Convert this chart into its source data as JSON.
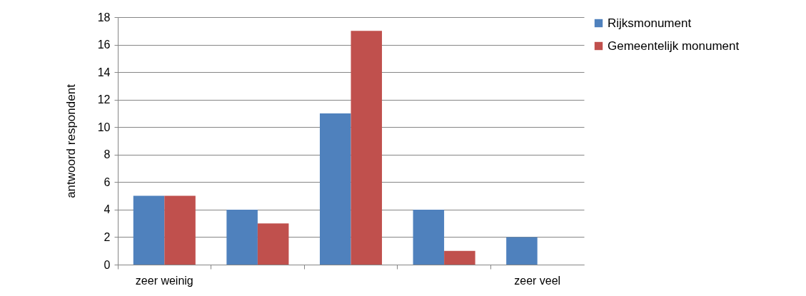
{
  "chart_data": {
    "type": "bar",
    "ylabel": "antwoord respondent",
    "categories": [
      "zeer weinig",
      null,
      null,
      null,
      "zeer veel"
    ],
    "series": [
      {
        "name": "Rijksmonument",
        "color": "#4f81bd",
        "values": [
          5,
          4,
          11,
          4,
          2
        ]
      },
      {
        "name": "Gemeentelijk monument",
        "color": "#c0504d",
        "values": [
          5,
          3,
          17,
          1,
          0
        ]
      }
    ],
    "ylim": [
      0,
      18
    ],
    "yticks": [
      0,
      2,
      4,
      6,
      8,
      10,
      12,
      14,
      16,
      18
    ],
    "grid": "y",
    "legend": "right"
  }
}
